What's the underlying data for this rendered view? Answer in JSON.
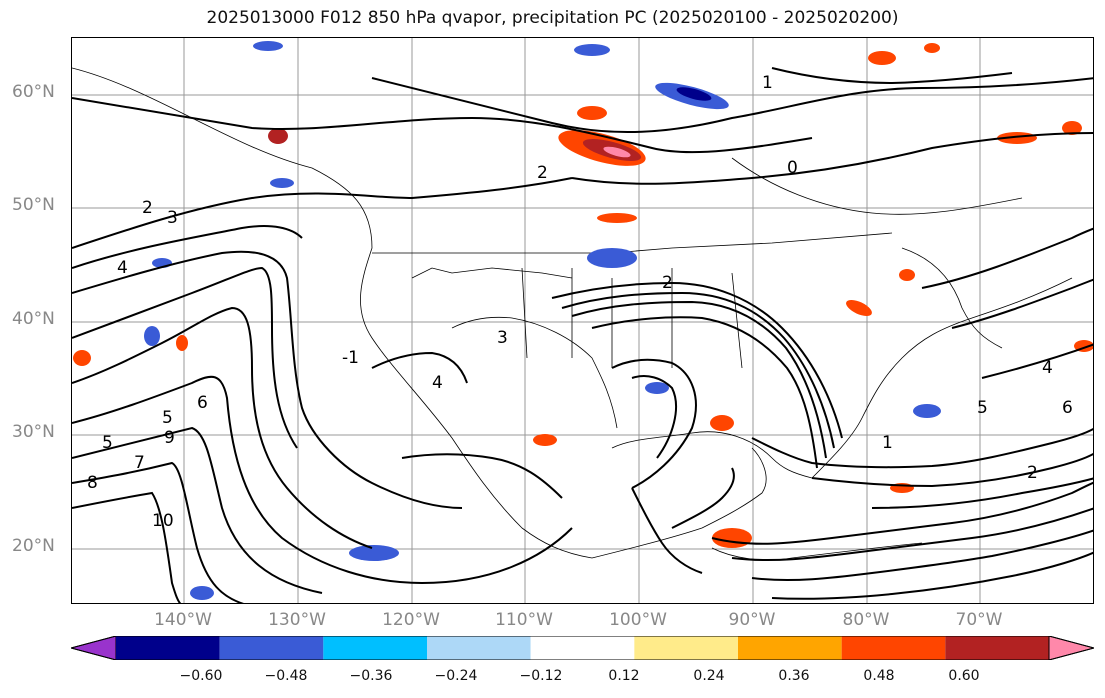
{
  "title": "2025013000 F012 850 hPa qvapor, precipitation PC (2025020100 - 2025020200)",
  "lat_labels": [
    "60°N",
    "50°N",
    "40°N",
    "30°N",
    "20°N"
  ],
  "lon_labels": [
    "140°W",
    "130°W",
    "120°W",
    "110°W",
    "100°W",
    "90°W",
    "80°W",
    "70°W"
  ],
  "colorbar": {
    "ticks": [
      "−0.60",
      "−0.48",
      "−0.36",
      "−0.24",
      "−0.12",
      "0.12",
      "0.24",
      "0.36",
      "0.48",
      "0.60"
    ],
    "colors": [
      "#9933cc",
      "#00008b",
      "#3a5bd6",
      "#00bfff",
      "#add8f7",
      "#ffffff",
      "#ffeb8a",
      "#ffa500",
      "#ff4500",
      "#b22222",
      "#ff88aa"
    ]
  },
  "contour_labels": [
    "-1",
    "0",
    "1",
    "2",
    "2",
    "2",
    "3",
    "3",
    "4",
    "4",
    "5",
    "5",
    "6",
    "7",
    "8",
    "9",
    "10",
    "1",
    "2",
    "4",
    "5",
    "6"
  ]
}
